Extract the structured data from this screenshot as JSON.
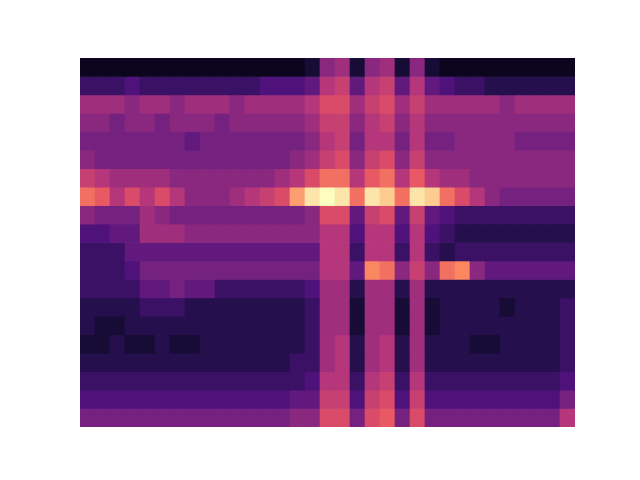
{
  "chart_data": {
    "type": "heatmap",
    "tick_labels": false,
    "grid": false,
    "color_range": [
      0,
      10
    ],
    "cells": [
      [
        0.5,
        0.5,
        0.5,
        0.5,
        0.5,
        0.5,
        0.5,
        0.5,
        0.5,
        0.5,
        0.5,
        0.5,
        0.5,
        0.5,
        0.5,
        1,
        4,
        4.5,
        1,
        4,
        4.5,
        1,
        4,
        1,
        0.5,
        0.5,
        0.5,
        0.5,
        0.5,
        0.5,
        0.5,
        0.5,
        0.5
      ],
      [
        2,
        2,
        2,
        2.5,
        2,
        2,
        2,
        2,
        2,
        2,
        2,
        2,
        2.5,
        2.5,
        2.5,
        3,
        5,
        5.5,
        3,
        5,
        5.5,
        3,
        5,
        3,
        2.5,
        2,
        2,
        1.5,
        1.5,
        1.5,
        1.5,
        1.5,
        1.5
      ],
      [
        4.5,
        4.5,
        4.5,
        4,
        4.5,
        4.5,
        4,
        4.5,
        4.5,
        4.5,
        4,
        4.5,
        4.5,
        4.5,
        4.5,
        5,
        6,
        6,
        4.5,
        5.5,
        6,
        4.5,
        5.5,
        4.5,
        4.5,
        4.5,
        4.5,
        4.5,
        4,
        4.5,
        4.5,
        4.5,
        4.5
      ],
      [
        4,
        4,
        3.5,
        4,
        4,
        3.5,
        4,
        4,
        4,
        3.5,
        4,
        4,
        4,
        4,
        4,
        4.5,
        5.5,
        5.5,
        4,
        5,
        5.5,
        4,
        5,
        4,
        4,
        4,
        4,
        4,
        4,
        4,
        4,
        4,
        4
      ],
      [
        3.5,
        3.5,
        3.5,
        3.5,
        3.5,
        3.5,
        3.5,
        3,
        3.5,
        3.5,
        3.5,
        3.5,
        3.5,
        3.5,
        3.5,
        4,
        5,
        5.5,
        3.5,
        5,
        5,
        3.5,
        5,
        3.5,
        3.5,
        4,
        4,
        4,
        4,
        3.5,
        3.5,
        3.5,
        3.5
      ],
      [
        4,
        3.5,
        3.5,
        3.5,
        3.5,
        3.5,
        3.5,
        3.5,
        3.5,
        3.5,
        3.5,
        3.5,
        3.5,
        3.5,
        4,
        4.5,
        5.5,
        6,
        4,
        5.5,
        6,
        4,
        5.5,
        4,
        4,
        4,
        4,
        4,
        4,
        4,
        4,
        4,
        4
      ],
      [
        5.5,
        5,
        4.5,
        4.5,
        4.5,
        4.5,
        4,
        4,
        4,
        4,
        4,
        4,
        4,
        4.5,
        5,
        6,
        7,
        7,
        5,
        6.5,
        7,
        5,
        6.5,
        5,
        4.5,
        4.5,
        4,
        4,
        4,
        4,
        4,
        4,
        4
      ],
      [
        7,
        6.5,
        5,
        6,
        5,
        6,
        5,
        4,
        4,
        4,
        4.5,
        5,
        5.5,
        6,
        8,
        9.5,
        10,
        9.5,
        7,
        9.5,
        9,
        7,
        9.5,
        9,
        7,
        6,
        5,
        4,
        3.5,
        3.5,
        3.5,
        3.5,
        3.5
      ],
      [
        4,
        3.5,
        3.5,
        3.5,
        4.5,
        4,
        3.5,
        3.5,
        3.5,
        3.5,
        3.5,
        3.5,
        3.5,
        3.5,
        3.5,
        4,
        6,
        6,
        3,
        5.5,
        6,
        3,
        5.5,
        3,
        2.5,
        2,
        2,
        2,
        2,
        2,
        2,
        2,
        2
      ],
      [
        2.5,
        2.5,
        3,
        3,
        4.5,
        4.5,
        4.5,
        4,
        4,
        4,
        4,
        4,
        4,
        4,
        4,
        4,
        5,
        5,
        2.5,
        5,
        5,
        2.5,
        5,
        2.5,
        2,
        1.5,
        1.5,
        1.5,
        1.5,
        1.5,
        1.5,
        1.5,
        1.5
      ],
      [
        2,
        2,
        2,
        3,
        3,
        3,
        3,
        3,
        3,
        3,
        3,
        3,
        3,
        3,
        3,
        3,
        5,
        5,
        2,
        5,
        5,
        2,
        5,
        2,
        1.5,
        2,
        2,
        2,
        2,
        2,
        2,
        2,
        2
      ],
      [
        2,
        2,
        2,
        2.5,
        3.5,
        3.5,
        3.5,
        3.5,
        3.5,
        3.5,
        3.5,
        3.5,
        3.5,
        3.5,
        3.5,
        3.5,
        5,
        5,
        3,
        7.5,
        7,
        4,
        5.5,
        4,
        7,
        7.5,
        4,
        3,
        3,
        3,
        3,
        3,
        3
      ],
      [
        2,
        2,
        2,
        2,
        3,
        3,
        3.5,
        3,
        3,
        2,
        2,
        2,
        2,
        2,
        2,
        2.5,
        4.5,
        4.5,
        1.5,
        4.5,
        4.5,
        1.5,
        4.5,
        1.5,
        1.5,
        1.5,
        1.5,
        1.5,
        1.5,
        1.5,
        1.5,
        1.5,
        1.5
      ],
      [
        1.5,
        1.5,
        1.5,
        1.5,
        2,
        2,
        2,
        1.5,
        1.5,
        1.5,
        1.5,
        1.5,
        1.5,
        1.5,
        1.5,
        2,
        4.5,
        4.5,
        1,
        4.5,
        4.5,
        1,
        4.5,
        1,
        1.5,
        1.5,
        1.5,
        1.5,
        1,
        1.5,
        1.5,
        1.5,
        2
      ],
      [
        1.5,
        1,
        1,
        1.5,
        1.5,
        1.5,
        1.5,
        1.5,
        1.5,
        1.5,
        1.5,
        1.5,
        1.5,
        1.5,
        1.5,
        2,
        4.5,
        4.5,
        1,
        4.5,
        4.5,
        1,
        4.5,
        1,
        1.5,
        1.5,
        1.5,
        1.5,
        1.5,
        1.5,
        1.5,
        1.5,
        2
      ],
      [
        1,
        1,
        1.5,
        1,
        1,
        1.5,
        1,
        1,
        1.5,
        1.5,
        1.5,
        1.5,
        1.5,
        1.5,
        1.5,
        2,
        4.5,
        5,
        1.5,
        4.5,
        5,
        1.5,
        4.5,
        1.5,
        1.5,
        1.5,
        1,
        1,
        1.5,
        1.5,
        1.5,
        1.5,
        2
      ],
      [
        1.5,
        1.5,
        1.5,
        1.5,
        1.5,
        1.5,
        1.5,
        1.5,
        1.5,
        1.5,
        1.5,
        1.5,
        1.5,
        1.5,
        2,
        2,
        4.5,
        5,
        1.5,
        4.5,
        5,
        1.5,
        4.5,
        1.5,
        1.5,
        1.5,
        1.5,
        1.5,
        1.5,
        1.5,
        1.5,
        1.5,
        2
      ],
      [
        2,
        2,
        2,
        2,
        2,
        2,
        2,
        2,
        2,
        2,
        2,
        2,
        2,
        2,
        2,
        2.5,
        5,
        5,
        2,
        5,
        5.5,
        2,
        5,
        2,
        2,
        2,
        2,
        2,
        2,
        2,
        2,
        2,
        2.5
      ],
      [
        2.5,
        2.5,
        2.5,
        2.5,
        2.5,
        2.5,
        2.5,
        2.5,
        2.5,
        2.5,
        2.5,
        2.5,
        2.5,
        2.5,
        3,
        3,
        5.5,
        5.5,
        2.5,
        5.5,
        6,
        2.5,
        5.5,
        2.5,
        2.5,
        2.5,
        2.5,
        2.5,
        2.5,
        2.5,
        2.5,
        2.5,
        3.5
      ],
      [
        3.5,
        3.5,
        3.5,
        3.5,
        3.5,
        3.5,
        3.5,
        3.5,
        3.5,
        3.5,
        3.5,
        3.5,
        3.5,
        3.5,
        4,
        4,
        6,
        6,
        3.5,
        6,
        6.5,
        3.5,
        6,
        3.5,
        3.5,
        3.5,
        3.5,
        3.5,
        3.5,
        3.5,
        3.5,
        3.5,
        5
      ]
    ]
  }
}
